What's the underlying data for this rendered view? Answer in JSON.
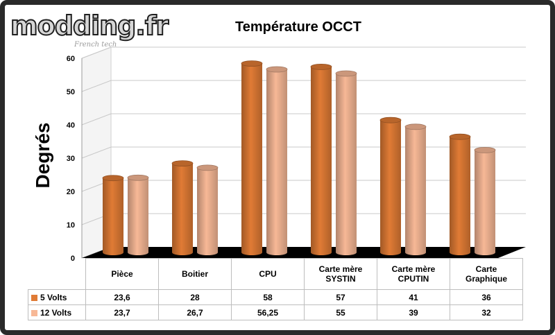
{
  "logo": {
    "text": "modding.fr",
    "tagline": "French tech"
  },
  "chart_data": {
    "type": "bar",
    "title": "Température OCCT",
    "ylabel": "Degrés",
    "xlabel": "",
    "ylim": [
      0,
      60
    ],
    "yticks": [
      0,
      10,
      20,
      30,
      40,
      50,
      60
    ],
    "grid": true,
    "categories": [
      [
        "Pièce"
      ],
      [
        "Boitier"
      ],
      [
        "CPU"
      ],
      [
        "Carte mère",
        "SYSTIN"
      ],
      [
        "Carte mère",
        "CPUTIN"
      ],
      [
        "Carte",
        "Graphique"
      ]
    ],
    "series": [
      {
        "name": "5 Volts",
        "color": "#e07b35",
        "values": [
          23.6,
          28,
          58,
          57,
          41,
          36
        ],
        "labels": [
          "23,6",
          "28",
          "58",
          "57",
          "41",
          "36"
        ]
      },
      {
        "name": "12 Volts",
        "color": "#f7b896",
        "values": [
          23.7,
          26.7,
          56.25,
          55,
          39,
          32
        ],
        "labels": [
          "23,7",
          "26,7",
          "56,25",
          "55",
          "39",
          "32"
        ]
      }
    ]
  }
}
